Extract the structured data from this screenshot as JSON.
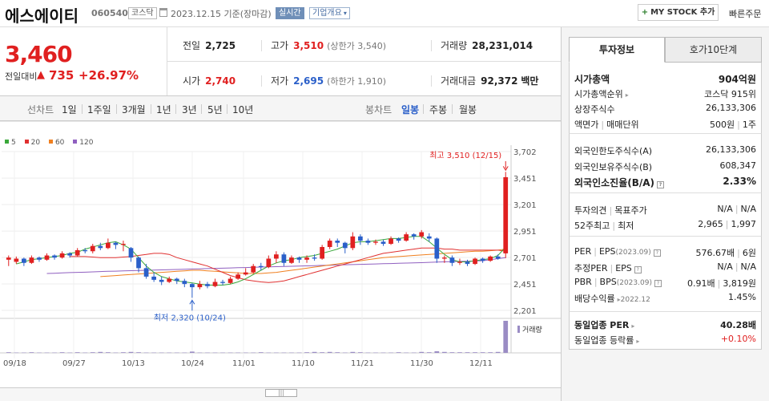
{
  "header": {
    "name": "에스에이티",
    "code": "060540",
    "market": "코스닥",
    "date": "2023.12.15 기준(장마감)",
    "live_label": "실시간",
    "info_label": "기업개요",
    "mystock_label": "MY STOCK 추가",
    "quick_order": "빠른주문"
  },
  "summary": {
    "price": "3,460",
    "change_label": "전일대비",
    "change": "735",
    "change_pct": "+26.97%",
    "prev_close_label": "전일",
    "prev_close": "2,725",
    "high_label": "고가",
    "high": "3,510",
    "upper_limit": "(상한가 3,540)",
    "volume_label": "거래량",
    "volume": "28,231,014",
    "open_label": "시가",
    "open": "2,740",
    "low_label": "저가",
    "low": "2,695",
    "lower_limit": "(하한가 1,910)",
    "amount_label": "거래대금",
    "amount": "92,372",
    "amount_unit": "백만"
  },
  "toolbar": {
    "line_label": "선차트",
    "periods": [
      "1일",
      "1주일",
      "3개월",
      "1년",
      "3년",
      "5년",
      "10년"
    ],
    "candle_label": "봉차트",
    "candle_types": [
      "일봉",
      "주봉",
      "월봉"
    ],
    "candle_selected": "일봉"
  },
  "chart_data": {
    "type": "candlestick",
    "legend": [
      "5",
      "20",
      "60",
      "120"
    ],
    "legend_colors": [
      "#3aa83a",
      "#e03030",
      "#f08020",
      "#9060c0"
    ],
    "y_ticks": [
      "3,702",
      "3,451",
      "3,201",
      "2,951",
      "2,701",
      "2,451",
      "2,201"
    ],
    "y_tick_values": [
      3702,
      3451,
      3201,
      2951,
      2701,
      2451,
      2201
    ],
    "ylim": [
      2201,
      3702
    ],
    "x_ticks": [
      "09/18",
      "09/27",
      "10/13",
      "10/24",
      "11/01",
      "11/10",
      "11/21",
      "11/30",
      "12/11"
    ],
    "max_label": "최고 3,510 (12/15)",
    "min_label": "최저 2,320 (10/24)",
    "volume_label": "거래량",
    "candles": [
      [
        2680,
        2700,
        2620,
        2720
      ],
      [
        2660,
        2690,
        2640,
        2710
      ],
      [
        2690,
        2650,
        2620,
        2700
      ],
      [
        2650,
        2700,
        2640,
        2720
      ],
      [
        2700,
        2680,
        2660,
        2710
      ],
      [
        2680,
        2720,
        2670,
        2740
      ],
      [
        2720,
        2700,
        2680,
        2730
      ],
      [
        2700,
        2740,
        2690,
        2760
      ],
      [
        2740,
        2720,
        2700,
        2750
      ],
      [
        2720,
        2770,
        2710,
        2790
      ],
      [
        2770,
        2760,
        2740,
        2790
      ],
      [
        2760,
        2810,
        2740,
        2830
      ],
      [
        2810,
        2790,
        2770,
        2840
      ],
      [
        2790,
        2840,
        2780,
        2880
      ],
      [
        2840,
        2820,
        2780,
        2850
      ],
      [
        2820,
        2830,
        2760,
        2860
      ],
      [
        2790,
        2700,
        2660,
        2800
      ],
      [
        2700,
        2600,
        2560,
        2710
      ],
      [
        2600,
        2520,
        2500,
        2640
      ],
      [
        2520,
        2490,
        2470,
        2560
      ],
      [
        2490,
        2470,
        2440,
        2520
      ],
      [
        2470,
        2500,
        2460,
        2520
      ],
      [
        2500,
        2480,
        2450,
        2510
      ],
      [
        2480,
        2450,
        2420,
        2500
      ],
      [
        2450,
        2420,
        2320,
        2460
      ],
      [
        2420,
        2450,
        2400,
        2480
      ],
      [
        2450,
        2430,
        2410,
        2470
      ],
      [
        2430,
        2470,
        2420,
        2500
      ],
      [
        2470,
        2460,
        2440,
        2490
      ],
      [
        2460,
        2500,
        2450,
        2520
      ],
      [
        2500,
        2540,
        2490,
        2560
      ],
      [
        2540,
        2560,
        2530,
        2600
      ],
      [
        2560,
        2620,
        2550,
        2640
      ],
      [
        2620,
        2610,
        2580,
        2650
      ],
      [
        2610,
        2690,
        2600,
        2720
      ],
      [
        2690,
        2730,
        2650,
        2760
      ],
      [
        2730,
        2650,
        2620,
        2750
      ],
      [
        2650,
        2700,
        2640,
        2720
      ],
      [
        2700,
        2680,
        2650,
        2710
      ],
      [
        2680,
        2700,
        2650,
        2720
      ],
      [
        2700,
        2690,
        2670,
        2730
      ],
      [
        2690,
        2800,
        2680,
        2820
      ],
      [
        2800,
        2860,
        2780,
        2880
      ],
      [
        2860,
        2840,
        2800,
        2880
      ],
      [
        2840,
        2790,
        2740,
        2850
      ],
      [
        2790,
        2900,
        2770,
        2940
      ],
      [
        2900,
        2860,
        2820,
        2920
      ],
      [
        2860,
        2840,
        2820,
        2880
      ],
      [
        2840,
        2850,
        2820,
        2870
      ],
      [
        2850,
        2830,
        2810,
        2870
      ],
      [
        2830,
        2880,
        2820,
        2900
      ],
      [
        2880,
        2860,
        2840,
        2890
      ],
      [
        2860,
        2920,
        2850,
        2940
      ],
      [
        2920,
        2900,
        2870,
        2930
      ],
      [
        2900,
        2940,
        2880,
        2960
      ],
      [
        2900,
        2880,
        2850,
        2930
      ],
      [
        2880,
        2690,
        2650,
        2890
      ],
      [
        2690,
        2700,
        2650,
        2720
      ],
      [
        2700,
        2650,
        2620,
        2720
      ],
      [
        2650,
        2660,
        2630,
        2690
      ],
      [
        2660,
        2640,
        2620,
        2680
      ],
      [
        2640,
        2690,
        2630,
        2700
      ],
      [
        2690,
        2670,
        2650,
        2700
      ],
      [
        2670,
        2710,
        2660,
        2720
      ],
      [
        2710,
        2690,
        2680,
        2730
      ],
      [
        2740,
        3460,
        2695,
        3510
      ]
    ],
    "ma5": [
      2640,
      2660,
      2680,
      2690,
      2700,
      2710,
      2720,
      2740,
      2750,
      2780,
      2800,
      2820,
      2840,
      2850,
      2820,
      2780,
      2700,
      2620,
      2560,
      2520,
      2500,
      2480,
      2470,
      2460,
      2450,
      2440,
      2440,
      2440,
      2450,
      2470,
      2500,
      2540,
      2580,
      2620,
      2650,
      2670,
      2680,
      2700,
      2710,
      2720,
      2740,
      2760,
      2780,
      2810,
      2840,
      2850,
      2850,
      2860,
      2870,
      2880,
      2880,
      2890,
      2900,
      2900,
      2850,
      2790,
      2730,
      2680,
      2660,
      2660,
      2670,
      2680,
      2690,
      2720,
      2800
    ],
    "ma20": [
      2710,
      2710,
      2710,
      2705,
      2700,
      2700,
      2700,
      2705,
      2710,
      2720,
      2730,
      2740,
      2740,
      2730,
      2700,
      2680,
      2660,
      2640,
      2620,
      2590,
      2560,
      2530,
      2510,
      2490,
      2480,
      2470,
      2465,
      2470,
      2480,
      2500,
      2520,
      2540,
      2560,
      2580,
      2600,
      2620,
      2640,
      2660,
      2680,
      2700,
      2720,
      2740,
      2750,
      2760,
      2770,
      2780,
      2790,
      2790,
      2790,
      2780,
      2780,
      2770,
      2770,
      2770,
      2770,
      2770,
      2770,
      2760
    ],
    "ma60": [
      2520,
      2525,
      2530,
      2535,
      2540,
      2545,
      2550,
      2555,
      2560,
      2565,
      2570,
      2575,
      2580,
      2580,
      2575,
      2570,
      2565,
      2560,
      2555,
      2550,
      2550,
      2550,
      2555,
      2560,
      2570,
      2580,
      2590,
      2600,
      2610,
      2620,
      2630,
      2640,
      2650,
      2660,
      2670,
      2680,
      2690,
      2700,
      2705,
      2710,
      2715,
      2720,
      2725,
      2730,
      2735,
      2740,
      2745,
      2750,
      2755,
      2760,
      2760,
      2765,
      2770,
      2780
    ],
    "ma120": [
      2550,
      2552,
      2555,
      2558,
      2560,
      2562,
      2565,
      2568,
      2570,
      2572,
      2574,
      2576,
      2578,
      2580,
      2582,
      2584,
      2586,
      2588,
      2590,
      2592,
      2594,
      2596,
      2598,
      2600,
      2602,
      2604,
      2606,
      2608,
      2610,
      2612,
      2614,
      2616,
      2618,
      2620,
      2622,
      2624,
      2626,
      2628,
      2630,
      2632,
      2634,
      2636,
      2638,
      2640,
      2642,
      2644,
      2646,
      2648,
      2650,
      2652,
      2655,
      2658,
      2660,
      2662,
      2664,
      2666,
      2668,
      2670,
      2680,
      2690,
      2700
    ],
    "volume_rel": [
      2,
      1,
      1,
      2,
      1,
      1,
      1,
      2,
      1,
      2,
      1,
      2,
      3,
      2,
      1,
      2,
      3,
      2,
      1,
      1,
      1,
      1,
      1,
      1,
      4,
      1,
      1,
      1,
      1,
      1,
      1,
      1,
      1,
      2,
      1,
      1,
      1,
      1,
      1,
      2,
      3,
      2,
      3,
      2,
      1,
      3,
      2,
      1,
      1,
      1,
      1,
      2,
      1,
      1,
      3,
      2,
      5,
      3,
      2,
      2,
      2,
      2,
      2,
      2,
      3,
      100
    ]
  },
  "panel": {
    "tab_invest": "투자정보",
    "tab_hoga": "호가10단계",
    "market_cap_label": "시가총액",
    "market_cap": "904억원",
    "cap_rank_label": "시가총액순위",
    "cap_rank": "코스닥 915위",
    "shares_label": "상장주식수",
    "shares": "26,133,306",
    "par_label": "액면가",
    "trade_unit_label": "매매단위",
    "par": "500원",
    "trade_unit": "1주",
    "foreign_limit_label": "외국인한도주식수(A)",
    "foreign_limit": "26,133,306",
    "foreign_hold_label": "외국인보유주식수(B)",
    "foreign_hold": "608,347",
    "foreign_ratio_label": "외국인소진율(B/A)",
    "foreign_ratio": "2.33%",
    "opinion_label": "투자의견",
    "target_label": "목표주가",
    "opinion": "N/A",
    "target": "N/A",
    "w52_label": "52주최고",
    "w52_low_label": "최저",
    "w52_high": "2,965",
    "w52_low": "1,997",
    "per_label": "PER",
    "eps_label": "EPS",
    "eps_period": "(2023.09)",
    "per": "576.67배",
    "eps": "6원",
    "est_per_label": "추정PER",
    "est_eps_label": "EPS",
    "est_per": "N/A",
    "est_eps": "N/A",
    "pbr_label": "PBR",
    "bps_label": "BPS",
    "bps_period": "(2023.09)",
    "pbr": "0.91배",
    "bps": "3,819원",
    "div_label": "배당수익률",
    "div_period": "2022.12",
    "div": "1.45%",
    "sector_per_label": "동일업종 PER",
    "sector_per": "40.28배",
    "sector_chg_label": "동일업종 등락률",
    "sector_chg": "+0.10%"
  }
}
